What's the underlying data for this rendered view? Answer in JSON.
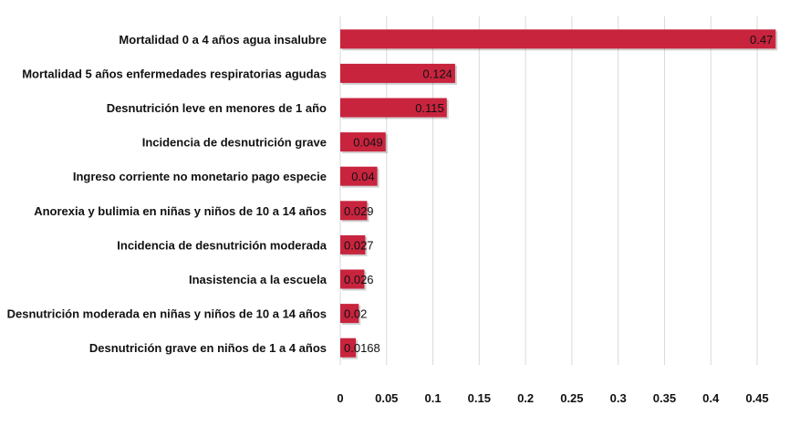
{
  "chart_data": {
    "type": "bar",
    "orientation": "horizontal",
    "title": "",
    "xlabel": "",
    "ylabel": "",
    "categories": [
      "Mortalidad 0 a 4 años agua insalubre",
      "Mortalidad 5 años enfermedades respiratorias agudas",
      "Desnutrición leve en menores de 1 año",
      "Incidencia de desnutrición grave",
      "Ingreso corriente no monetario pago especie",
      "Anorexia y bulimia en niñas y niños de 10 a 14 años",
      "Incidencia de desnutrición moderada",
      "Inasistencia a la escuela",
      "Desnutrición moderada en niñas y niños de 10 a 14 años",
      "Desnutrición grave en niños de 1 a 4 años"
    ],
    "values": [
      0.47,
      0.124,
      0.115,
      0.049,
      0.04,
      0.029,
      0.027,
      0.026,
      0.02,
      0.0168
    ],
    "data_labels": [
      "0.47",
      "0.124",
      "0.115",
      "0.049",
      "0.04",
      "0.029",
      "0.027",
      "0.026",
      "0.02",
      "0.0168"
    ],
    "xticks": [
      "0",
      "0.05",
      "0.1",
      "0.15",
      "0.2",
      "0.25",
      "0.3",
      "0.35",
      "0.4",
      "0.45"
    ],
    "xlim": [
      0,
      0.47
    ],
    "grid": "vertical",
    "legend": "none",
    "bar_color": "#C8243E"
  }
}
